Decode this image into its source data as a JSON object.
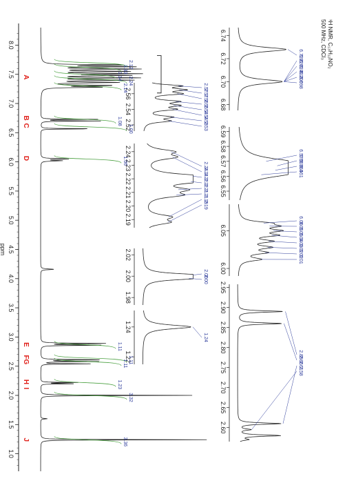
{
  "title_lines": [
    "¹H NMR, C₁₃H₁₂NO₂",
    "500 MHz, CDCl₃"
  ],
  "colors": {
    "spectrum": "#222222",
    "integral": "#4aa040",
    "peak_label": "#2b3a9a",
    "assignment": "#e0201a",
    "axis": "#222222"
  },
  "chart_data": [
    {
      "type": "line",
      "id": "main",
      "x_axis_label": "ppm",
      "ticks": [
        "8.0",
        "7.5",
        "7.0",
        "6.5",
        "6.0",
        "5.5",
        "5.0",
        "4.5",
        "4.0",
        "3.5",
        "3.0",
        "2.5",
        "2.0",
        "1.5",
        "1.0"
      ],
      "xlim": [
        8.3,
        0.7
      ],
      "assignments": [
        {
          "ppm": 7.45,
          "label": "A"
        },
        {
          "ppm": 6.75,
          "label": "B"
        },
        {
          "ppm": 6.62,
          "label": "C"
        },
        {
          "ppm": 6.06,
          "label": "D"
        },
        {
          "ppm": 2.87,
          "label": "E"
        },
        {
          "ppm": 2.61,
          "label": "FG"
        },
        {
          "ppm": 2.23,
          "label": "H"
        },
        {
          "ppm": 2.12,
          "label": "I"
        },
        {
          "ppm": 1.24,
          "label": "J"
        }
      ],
      "integrals": [
        {
          "ppm": 7.7,
          "value": "2.12"
        },
        {
          "ppm": 7.62,
          "value": "3.33"
        },
        {
          "ppm": 7.5,
          "value": "1.14"
        },
        {
          "ppm": 7.42,
          "value": "2.24"
        },
        {
          "ppm": 7.3,
          "value": "2.14"
        },
        {
          "ppm": 6.73,
          "value": "1.08"
        },
        {
          "ppm": 6.6,
          "value": "1.00"
        },
        {
          "ppm": 6.05,
          "value": "1.06"
        },
        {
          "ppm": 2.87,
          "value": "1.11"
        },
        {
          "ppm": 2.64,
          "value": "1.11"
        },
        {
          "ppm": 2.58,
          "value": "1.11"
        },
        {
          "ppm": 2.22,
          "value": "1.23"
        },
        {
          "ppm": 2.0,
          "value": "3.32"
        },
        {
          "ppm": 1.24,
          "value": "3.36"
        }
      ]
    },
    {
      "type": "line",
      "id": "inset-6.7",
      "ticks": [
        "6.74",
        "6.72",
        "6.70",
        "6.68"
      ],
      "xlim": [
        6.747,
        6.675
      ],
      "peak_labels": [
        "6.728",
        "6.726",
        "6.724",
        "6.702",
        "6.700",
        "6.698"
      ]
    },
    {
      "type": "line",
      "id": "inset-6.57",
      "ticks": [
        "6.59",
        "6.58",
        "6.57",
        "6.56",
        "6.55"
      ],
      "xlim": [
        6.593,
        6.544
      ],
      "peak_labels": [
        "6.570",
        "6.567",
        "6.564",
        "6.561"
      ]
    },
    {
      "type": "line",
      "id": "inset-6.03",
      "ticks": [
        "6.05",
        "6.00"
      ],
      "xlim": [
        6.085,
        5.99
      ],
      "peak_labels": [
        "6.06",
        "6.05",
        "6.05",
        "6.04",
        "6.03",
        "6.02",
        "6.02",
        "6.01"
      ]
    },
    {
      "type": "line",
      "id": "inset-2.7",
      "ticks": [
        "2.95",
        "2.90",
        "2.85",
        "2.80",
        "2.75",
        "2.70",
        "2.65",
        "2.60"
      ],
      "xlim": [
        2.958,
        2.565
      ],
      "peak_labels": [
        "2.89",
        "2.86",
        "2.61",
        "2.58"
      ]
    },
    {
      "type": "line",
      "id": "inset-2.54",
      "ticks": [
        "2.56",
        "2.54",
        "2.52"
      ],
      "xlim": [
        2.574,
        2.512
      ],
      "peak_labels": [
        "2.57",
        "2.57",
        "2.56",
        "2.55",
        "2.54",
        "2.54",
        "2.53",
        "2.53"
      ]
    },
    {
      "type": "line",
      "id": "inset-2.22",
      "ticks": [
        "2.24",
        "2.23",
        "2.22",
        "2.21",
        "2.20",
        "2.19"
      ],
      "xlim": [
        2.246,
        2.184
      ],
      "peak_labels": [
        "2.24",
        "2.24",
        "2.22",
        "2.22",
        "2.21",
        "2.21",
        "2.19",
        "2.19"
      ]
    },
    {
      "type": "line",
      "id": "inset-2.00",
      "ticks": [
        "2.02",
        "2.00",
        "1.98"
      ],
      "xlim": [
        2.026,
        1.973
      ],
      "peak_labels": [
        "2.00",
        "2.00"
      ]
    },
    {
      "type": "line",
      "id": "inset-1.24",
      "ticks": [
        "1.24",
        "1.22"
      ],
      "xlim": [
        1.251,
        1.215
      ],
      "peak_labels": [
        "1.24"
      ]
    }
  ]
}
